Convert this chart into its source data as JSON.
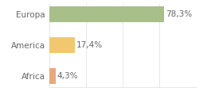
{
  "categories": [
    "Africa",
    "America",
    "Europa"
  ],
  "values": [
    4.3,
    17.4,
    78.3
  ],
  "bar_colors": [
    "#e8a87c",
    "#f0c870",
    "#a8bf8a"
  ],
  "labels": [
    "4,3%",
    "17,4%",
    "78,3%"
  ],
  "background_color": "#ffffff",
  "xlim": [
    0,
    100
  ],
  "bar_height": 0.5,
  "label_fontsize": 7.5,
  "tick_fontsize": 7.5,
  "grid_color": "#dddddd",
  "text_color": "#666666"
}
